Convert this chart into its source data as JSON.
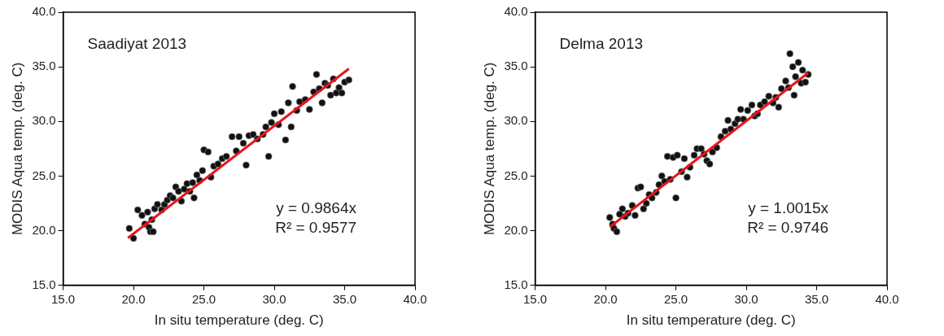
{
  "chart_data": [
    {
      "type": "scatter",
      "xlabel": "In situ temperature (deg. C)",
      "ylabel": "MODIS Aqua temp. (deg. C)",
      "xlim": [
        15,
        40
      ],
      "ylim": [
        15,
        40
      ],
      "xticks": [
        {
          "value": 15,
          "label": "15.0"
        },
        {
          "value": 20,
          "label": "20.0"
        },
        {
          "value": 25,
          "label": "25.0"
        },
        {
          "value": 30,
          "label": "30.0"
        },
        {
          "value": 35,
          "label": "35.0"
        },
        {
          "value": 40,
          "label": "40.0"
        }
      ],
      "yticks": [
        {
          "value": 15,
          "label": "15.0"
        },
        {
          "value": 20,
          "label": "20.0"
        },
        {
          "value": 25,
          "label": "25.0"
        },
        {
          "value": 30,
          "label": "30.0"
        },
        {
          "value": 35,
          "label": "35.0"
        },
        {
          "value": 40,
          "label": "40.0"
        }
      ],
      "grid": false,
      "legend": false,
      "marker": "circle",
      "annotations": [
        "Saadiyat 2013",
        "y = 0.9864x",
        "R² = 0.9577"
      ],
      "series": [
        {
          "type": "scatter",
          "color": "#111111",
          "x": [
            19.7,
            20.0,
            20.3,
            20.6,
            20.8,
            21.0,
            21.1,
            21.2,
            21.4,
            21.3,
            21.5,
            21.7,
            22.0,
            22.2,
            22.4,
            22.6,
            22.8,
            23.0,
            23.2,
            23.4,
            23.6,
            23.8,
            24.0,
            24.2,
            24.3,
            24.5,
            24.7,
            24.9,
            25.0,
            25.3,
            25.5,
            25.7,
            26.0,
            26.3,
            26.6,
            27.0,
            27.3,
            27.5,
            27.8,
            28.0,
            28.2,
            28.5,
            28.8,
            29.2,
            29.4,
            29.6,
            29.8,
            30.0,
            30.3,
            30.5,
            30.8,
            31.0,
            31.2,
            31.3,
            31.6,
            31.8,
            32.2,
            32.5,
            32.8,
            33.0,
            33.2,
            33.4,
            33.6,
            33.8,
            34.0,
            34.2,
            34.4,
            34.6,
            34.8,
            35.0,
            35.3
          ],
          "values": [
            20.2,
            19.3,
            21.9,
            21.4,
            20.6,
            21.7,
            20.3,
            19.9,
            19.9,
            21.0,
            22.0,
            22.4,
            21.9,
            22.4,
            22.8,
            23.2,
            23.0,
            24.0,
            23.6,
            22.7,
            23.8,
            24.3,
            23.6,
            24.4,
            23.0,
            25.1,
            24.6,
            25.5,
            27.4,
            27.2,
            24.9,
            25.9,
            26.1,
            26.6,
            26.8,
            28.6,
            27.3,
            28.6,
            28.0,
            26.0,
            28.7,
            28.8,
            28.4,
            28.8,
            29.5,
            26.8,
            29.9,
            30.7,
            29.7,
            30.9,
            28.3,
            31.7,
            29.5,
            33.2,
            31.0,
            31.8,
            32.0,
            31.1,
            32.7,
            34.3,
            33.0,
            31.7,
            33.5,
            33.3,
            32.4,
            33.9,
            32.6,
            33.1,
            32.6,
            33.6,
            33.8
          ]
        },
        {
          "type": "line",
          "color": "#e8141c",
          "marker": "none",
          "x": [
            19.6,
            35.3
          ],
          "values": [
            19.33,
            34.82
          ]
        }
      ]
    },
    {
      "type": "scatter",
      "xlabel": "In situ temperature (deg. C)",
      "ylabel": "MODIS Aqua temp. (deg. C)",
      "xlim": [
        15,
        40
      ],
      "ylim": [
        15,
        40
      ],
      "xticks": [
        {
          "value": 15,
          "label": "15.0"
        },
        {
          "value": 20,
          "label": "20.0"
        },
        {
          "value": 25,
          "label": "25.0"
        },
        {
          "value": 30,
          "label": "30.0"
        },
        {
          "value": 35,
          "label": "35.0"
        },
        {
          "value": 40,
          "label": "40.0"
        }
      ],
      "yticks": [
        {
          "value": 15,
          "label": "15.0"
        },
        {
          "value": 20,
          "label": "20.0"
        },
        {
          "value": 25,
          "label": "25.0"
        },
        {
          "value": 30,
          "label": "30.0"
        },
        {
          "value": 35,
          "label": "35.0"
        },
        {
          "value": 40,
          "label": "40.0"
        }
      ],
      "grid": false,
      "legend": false,
      "marker": "circle",
      "annotations": [
        "Delma 2013",
        "y = 1.0015x",
        "R² = 0.9746"
      ],
      "series": [
        {
          "type": "scatter",
          "color": "#111111",
          "x": [
            20.3,
            20.5,
            20.6,
            20.8,
            21.0,
            21.2,
            21.4,
            21.6,
            21.9,
            22.1,
            22.3,
            22.5,
            22.7,
            22.9,
            23.1,
            23.3,
            23.6,
            23.8,
            24.0,
            24.2,
            24.4,
            24.6,
            24.8,
            25.0,
            25.1,
            25.4,
            25.6,
            25.8,
            26.0,
            26.3,
            26.5,
            26.8,
            27.0,
            27.2,
            27.4,
            27.6,
            27.9,
            28.2,
            28.5,
            28.7,
            28.9,
            29.2,
            29.4,
            29.6,
            29.8,
            30.1,
            30.4,
            30.6,
            30.8,
            31.0,
            31.3,
            31.6,
            31.9,
            32.1,
            32.3,
            32.5,
            32.8,
            33.0,
            33.1,
            33.3,
            33.4,
            33.5,
            33.7,
            33.9,
            34.0,
            34.2,
            34.4
          ],
          "values": [
            21.2,
            20.6,
            20.2,
            19.9,
            21.5,
            22.0,
            21.3,
            21.6,
            22.3,
            21.4,
            23.9,
            24.0,
            22.0,
            22.5,
            23.3,
            23.0,
            23.5,
            24.2,
            25.0,
            24.5,
            26.8,
            24.7,
            26.7,
            23.0,
            26.9,
            25.4,
            26.6,
            24.9,
            25.8,
            26.9,
            27.5,
            27.5,
            27.0,
            26.4,
            26.1,
            27.2,
            27.6,
            28.6,
            29.1,
            30.1,
            29.3,
            29.8,
            30.2,
            31.1,
            30.2,
            31.0,
            31.5,
            30.5,
            30.7,
            31.5,
            31.8,
            32.3,
            31.7,
            32.2,
            31.3,
            33.0,
            33.7,
            33.1,
            36.2,
            35.0,
            32.4,
            34.1,
            35.4,
            33.5,
            34.7,
            33.6,
            34.3
          ]
        },
        {
          "type": "line",
          "color": "#e8141c",
          "marker": "none",
          "x": [
            20.3,
            34.4
          ],
          "values": [
            20.33,
            34.45
          ]
        }
      ]
    }
  ]
}
